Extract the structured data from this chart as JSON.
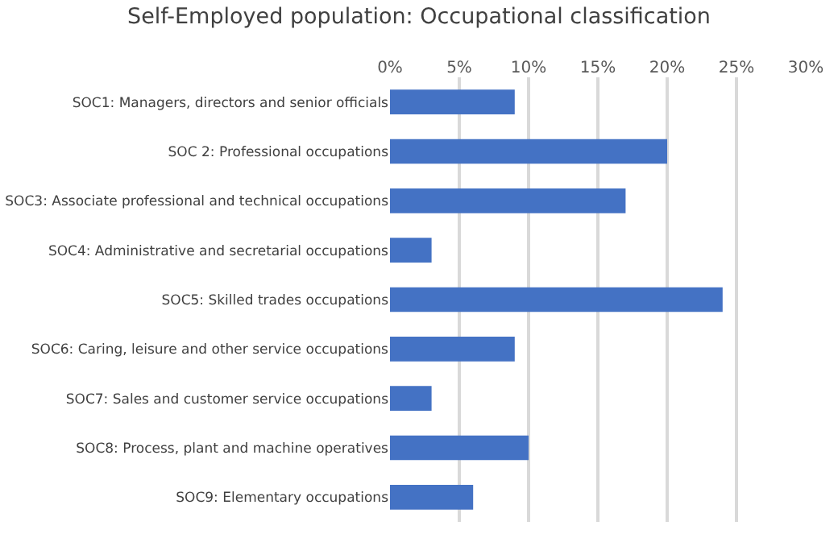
{
  "chart_data": {
    "type": "bar",
    "orientation": "horizontal",
    "title": "Self-Employed population: Occupational classification",
    "categories": [
      "SOC1: Managers, directors and senior officials",
      "SOC 2: Professional occupations",
      "SOC3: Associate professional and technical occupations",
      "SOC4: Administrative and secretarial occupations",
      "SOC5: Skilled trades occupations",
      "SOC6: Caring, leisure and other service occupations",
      "SOC7: Sales and customer service occupations",
      "SOC8: Process, plant and machine operatives",
      "SOC9: Elementary occupations"
    ],
    "values": [
      9,
      20,
      17,
      3,
      24,
      9,
      3,
      10,
      6
    ],
    "color": "#4472c4",
    "xlim": [
      0,
      30
    ],
    "xticks": [
      {
        "value": 0,
        "label": "0%"
      },
      {
        "value": 5,
        "label": "5%"
      },
      {
        "value": 10,
        "label": "10%"
      },
      {
        "value": 15,
        "label": "15%"
      },
      {
        "value": 20,
        "label": "20%"
      },
      {
        "value": 25,
        "label": "25%"
      },
      {
        "value": 30,
        "label": "30%"
      }
    ],
    "grid": "x"
  }
}
